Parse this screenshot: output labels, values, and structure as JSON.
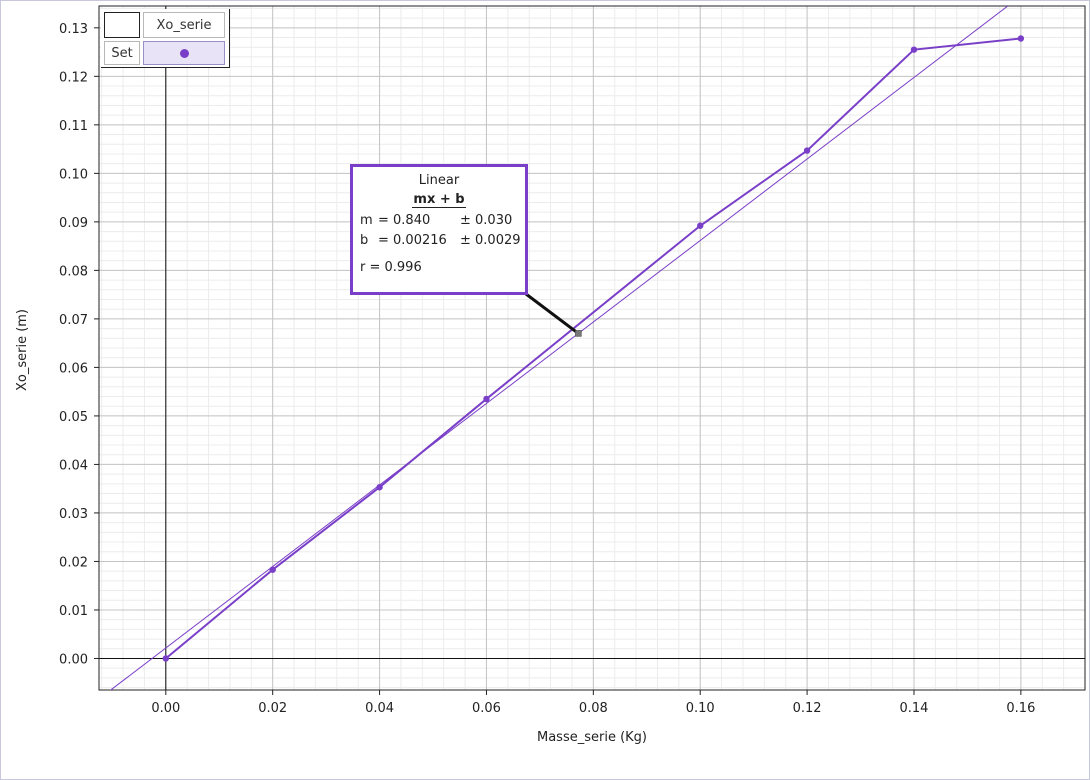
{
  "chart_data": {
    "type": "scatter",
    "xlabel": "Masse_serie (Kg)",
    "ylabel": "Xo_serie (m)",
    "xlim": [
      -0.0125,
      0.172
    ],
    "ylim": [
      -0.0065,
      0.1345
    ],
    "x_ticks": [
      "0.00",
      "0.02",
      "0.04",
      "0.06",
      "0.08",
      "0.10",
      "0.12",
      "0.14",
      "0.16"
    ],
    "y_ticks": [
      "0.00",
      "0.01",
      "0.02",
      "0.03",
      "0.04",
      "0.05",
      "0.06",
      "0.07",
      "0.08",
      "0.09",
      "0.10",
      "0.11",
      "0.12",
      "0.13"
    ],
    "grid": true,
    "series": [
      {
        "name": "Xo_serie",
        "color": "#7a3fc8",
        "connected": true,
        "x": [
          0.0,
          0.02,
          0.04,
          0.06,
          0.1,
          0.12,
          0.14,
          0.16
        ],
        "y": [
          0.0,
          0.0183,
          0.0353,
          0.0535,
          0.0892,
          0.1047,
          0.1255,
          0.1278
        ]
      }
    ],
    "fit": {
      "type": "linear",
      "slope": 0.84,
      "intercept": 0.00216,
      "anchor_x": 0.0772
    },
    "legend_placement": "top-left"
  },
  "legend": {
    "series_name": "Xo_serie",
    "set_label": "Set"
  },
  "fit_box": {
    "title": "Linear",
    "equation": "mx + b",
    "m_name": "m",
    "m_value": "= 0.840",
    "m_err": "± 0.030",
    "b_name": "b",
    "b_value": "= 0.00216",
    "b_err": "± 0.0029",
    "r_text": "r = 0.996"
  },
  "colors": {
    "accent": "#7a3fc8",
    "grid_major": "#c4c4c4",
    "grid_minor": "#ececec",
    "frame": "#c8c8dc"
  }
}
